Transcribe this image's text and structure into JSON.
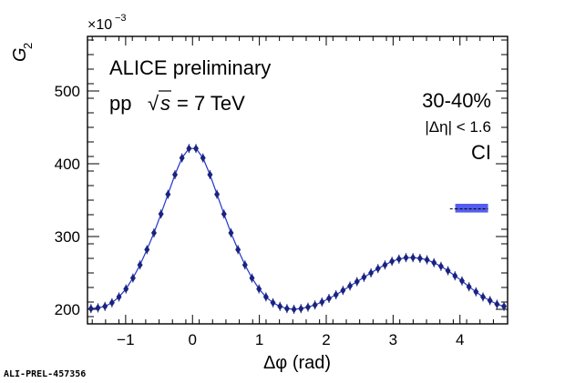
{
  "chart_data": {
    "type": "scatter",
    "title": "",
    "xlabel": "Δφ (rad)",
    "ylabel": "G",
    "ylabel_subscript": "2",
    "y_multiplier": "×10",
    "y_multiplier_exp": "−3",
    "xlim": [
      -1.5708,
      4.7124
    ],
    "ylim": [
      180,
      575
    ],
    "x_ticks": [
      -1,
      0,
      1,
      2,
      3,
      4
    ],
    "x_tick_labels": [
      "−1",
      "0",
      "1",
      "2",
      "3",
      "4"
    ],
    "y_ticks": [
      200,
      300,
      400,
      500
    ],
    "y_tick_labels": [
      "200",
      "300",
      "400",
      "500"
    ],
    "grid": false,
    "legend": "none",
    "annotations": {
      "experiment": "ALICE preliminary",
      "system_prefix": "pp",
      "sqrt_symbol": "√",
      "energy_var": "s",
      "energy_value": "= 7 TeV",
      "centrality": "30-40%",
      "eta_cut": "|Δη| < 1.6",
      "charge_combination": "CI",
      "figure_id": "ALI-PREL-457356"
    },
    "colors": {
      "series": "#1a237e",
      "line": "#2233cc",
      "syst_band": "#4a55ee"
    },
    "systematic": {
      "x_start": 3.85,
      "x_band_start": 3.93,
      "x_end": 4.42,
      "y_low": 333,
      "y_high": 345,
      "y_center": 338
    },
    "series": [
      {
        "values_x": [
          -1.5186,
          -1.414,
          -1.3093,
          -1.2046,
          -1.0999,
          -0.9952,
          -0.8905,
          -0.7858,
          -0.6811,
          -0.5764,
          -0.4717,
          -0.367,
          -0.2623,
          -0.1576,
          -0.0529,
          0.0518,
          0.1565,
          0.2612,
          0.3659,
          0.4706,
          0.5753,
          0.68,
          0.7847,
          0.8894,
          0.9941,
          1.0988,
          1.2035,
          1.3082,
          1.4129,
          1.5176,
          1.6223,
          1.727,
          1.8317,
          1.9364,
          2.0411,
          2.1458,
          2.2505,
          2.3552,
          2.4599,
          2.5646,
          2.6693,
          2.774,
          2.8787,
          2.9834,
          3.0881,
          3.1928,
          3.2975,
          3.4022,
          3.5069,
          3.6116,
          3.7163,
          3.821,
          3.9257,
          4.0304,
          4.1351,
          4.2398,
          4.3445,
          4.4492,
          4.5539,
          4.6586
        ],
        "values_y": [
          201,
          202,
          204,
          209,
          217,
          228,
          243,
          261,
          282,
          305,
          331,
          358,
          385,
          408,
          421,
          421,
          408,
          385,
          358,
          331,
          305,
          282,
          261,
          243,
          228,
          217,
          209,
          204,
          201,
          200,
          201,
          203,
          206,
          210,
          215,
          220,
          226,
          232,
          238,
          244,
          250,
          256,
          261,
          266,
          269,
          271,
          271,
          270,
          268,
          264,
          259,
          253,
          246,
          239,
          231,
          224,
          217,
          212,
          207,
          204
        ]
      }
    ]
  }
}
